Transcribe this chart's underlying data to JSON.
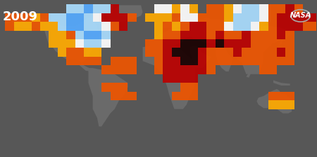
{
  "year_text": "2009",
  "year_color": "#ffffff",
  "year_fontsize": 13,
  "nasa_text": "NASA",
  "background_color": "#575757",
  "land_color": "#6a6a6a",
  "ocean_color": "#575757",
  "figsize": [
    4.5,
    2.24
  ],
  "dpi": 100,
  "colors": {
    "4": "#1a0000",
    "3": "#bb0000",
    "2": "#ee5500",
    "1": "#ffaa00",
    "0": "#ffffff",
    "-1": "#aaddff",
    "-2": "#55aaff",
    "-3": "#2255cc"
  },
  "anomaly_cells": [
    {
      "lon": -175,
      "lat": 65,
      "val": 2
    },
    {
      "lon": -165,
      "lat": 65,
      "val": 2
    },
    {
      "lon": -155,
      "lat": 65,
      "val": 2
    },
    {
      "lon": -145,
      "lat": 65,
      "val": 1
    },
    {
      "lon": -135,
      "lat": 65,
      "val": 2
    },
    {
      "lon": -175,
      "lat": 55,
      "val": 2
    },
    {
      "lon": -165,
      "lat": 55,
      "val": 1
    },
    {
      "lon": -155,
      "lat": 55,
      "val": 1
    },
    {
      "lon": -145,
      "lat": 55,
      "val": 2
    },
    {
      "lon": -135,
      "lat": 55,
      "val": 1
    },
    {
      "lon": -125,
      "lat": 55,
      "val": 1
    },
    {
      "lon": -115,
      "lat": 55,
      "val": -1
    },
    {
      "lon": -105,
      "lat": 55,
      "val": -2
    },
    {
      "lon": -95,
      "lat": 55,
      "val": -2
    },
    {
      "lon": -85,
      "lat": 55,
      "val": -1
    },
    {
      "lon": -75,
      "lat": 55,
      "val": -1
    },
    {
      "lon": -65,
      "lat": 55,
      "val": 0
    },
    {
      "lon": -55,
      "lat": 55,
      "val": 2
    },
    {
      "lon": -45,
      "lat": 55,
      "val": 3
    },
    {
      "lon": -125,
      "lat": 65,
      "val": -1
    },
    {
      "lon": -115,
      "lat": 65,
      "val": -1
    },
    {
      "lon": -105,
      "lat": 65,
      "val": -2
    },
    {
      "lon": -95,
      "lat": 65,
      "val": -2
    },
    {
      "lon": -85,
      "lat": 65,
      "val": -1
    },
    {
      "lon": -75,
      "lat": 65,
      "val": 0
    },
    {
      "lon": -65,
      "lat": 65,
      "val": 3
    },
    {
      "lon": -55,
      "lat": 65,
      "val": 3
    },
    {
      "lon": -45,
      "lat": 65,
      "val": 3
    },
    {
      "lon": -35,
      "lat": 65,
      "val": 2
    },
    {
      "lon": -125,
      "lat": 45,
      "val": 1
    },
    {
      "lon": -115,
      "lat": 45,
      "val": 1
    },
    {
      "lon": -105,
      "lat": 45,
      "val": 2
    },
    {
      "lon": -95,
      "lat": 45,
      "val": -1
    },
    {
      "lon": -85,
      "lat": 45,
      "val": -2
    },
    {
      "lon": -75,
      "lat": 45,
      "val": -2
    },
    {
      "lon": -65,
      "lat": 45,
      "val": -1
    },
    {
      "lon": -125,
      "lat": 35,
      "val": 1
    },
    {
      "lon": -115,
      "lat": 35,
      "val": 1
    },
    {
      "lon": -105,
      "lat": 35,
      "val": 1
    },
    {
      "lon": -95,
      "lat": 35,
      "val": 0
    },
    {
      "lon": -85,
      "lat": 35,
      "val": -1
    },
    {
      "lon": -75,
      "lat": 35,
      "val": -1
    },
    {
      "lon": -65,
      "lat": 35,
      "val": 0
    },
    {
      "lon": -115,
      "lat": 25,
      "val": 1
    },
    {
      "lon": -105,
      "lat": 25,
      "val": 2
    },
    {
      "lon": -95,
      "lat": 25,
      "val": 2
    },
    {
      "lon": -85,
      "lat": 25,
      "val": 1
    },
    {
      "lon": -75,
      "lat": 25,
      "val": 1
    },
    {
      "lon": -105,
      "lat": 15,
      "val": 2
    },
    {
      "lon": -95,
      "lat": 15,
      "val": 2
    },
    {
      "lon": -85,
      "lat": 15,
      "val": 2
    },
    {
      "lon": -75,
      "lat": 15,
      "val": 2
    },
    {
      "lon": -15,
      "lat": 65,
      "val": 1
    },
    {
      "lon": -5,
      "lat": 65,
      "val": 1
    },
    {
      "lon": 5,
      "lat": 65,
      "val": 1
    },
    {
      "lon": 15,
      "lat": 65,
      "val": 2
    },
    {
      "lon": 25,
      "lat": 65,
      "val": 0
    },
    {
      "lon": 35,
      "lat": 65,
      "val": 0
    },
    {
      "lon": 45,
      "lat": 65,
      "val": 2
    },
    {
      "lon": 55,
      "lat": 65,
      "val": 2
    },
    {
      "lon": 65,
      "lat": 65,
      "val": 2
    },
    {
      "lon": 75,
      "lat": 65,
      "val": 1
    },
    {
      "lon": 85,
      "lat": 65,
      "val": -1
    },
    {
      "lon": 95,
      "lat": 65,
      "val": -1
    },
    {
      "lon": 105,
      "lat": 65,
      "val": -1
    },
    {
      "lon": 115,
      "lat": 65,
      "val": 0
    },
    {
      "lon": 125,
      "lat": 65,
      "val": 2
    },
    {
      "lon": 135,
      "lat": 65,
      "val": 3
    },
    {
      "lon": 145,
      "lat": 65,
      "val": 3
    },
    {
      "lon": 155,
      "lat": 65,
      "val": 3
    },
    {
      "lon": 165,
      "lat": 65,
      "val": 3
    },
    {
      "lon": 175,
      "lat": 65,
      "val": 3
    },
    {
      "lon": -5,
      "lat": 55,
      "val": 1
    },
    {
      "lon": 5,
      "lat": 55,
      "val": 2
    },
    {
      "lon": 15,
      "lat": 55,
      "val": 1
    },
    {
      "lon": 25,
      "lat": 55,
      "val": 2
    },
    {
      "lon": 35,
      "lat": 55,
      "val": 3
    },
    {
      "lon": 45,
      "lat": 55,
      "val": 3
    },
    {
      "lon": 55,
      "lat": 55,
      "val": 2
    },
    {
      "lon": 65,
      "lat": 55,
      "val": 2
    },
    {
      "lon": 75,
      "lat": 55,
      "val": 0
    },
    {
      "lon": 85,
      "lat": 55,
      "val": -1
    },
    {
      "lon": 95,
      "lat": 55,
      "val": -1
    },
    {
      "lon": 105,
      "lat": 55,
      "val": 0
    },
    {
      "lon": 115,
      "lat": 55,
      "val": 1
    },
    {
      "lon": 125,
      "lat": 55,
      "val": 2
    },
    {
      "lon": 135,
      "lat": 55,
      "val": 3
    },
    {
      "lon": 145,
      "lat": 55,
      "val": 3
    },
    {
      "lon": 155,
      "lat": 55,
      "val": 3
    },
    {
      "lon": 165,
      "lat": 55,
      "val": 2
    },
    {
      "lon": 175,
      "lat": 55,
      "val": 2
    },
    {
      "lon": -5,
      "lat": 45,
      "val": 1
    },
    {
      "lon": 5,
      "lat": 45,
      "val": 2
    },
    {
      "lon": 15,
      "lat": 45,
      "val": 2
    },
    {
      "lon": 25,
      "lat": 45,
      "val": 3
    },
    {
      "lon": 35,
      "lat": 45,
      "val": 3
    },
    {
      "lon": 45,
      "lat": 45,
      "val": 3
    },
    {
      "lon": 55,
      "lat": 45,
      "val": 2
    },
    {
      "lon": 65,
      "lat": 45,
      "val": 3
    },
    {
      "lon": 75,
      "lat": 45,
      "val": 2
    },
    {
      "lon": 85,
      "lat": 45,
      "val": 2
    },
    {
      "lon": 95,
      "lat": 45,
      "val": 3
    },
    {
      "lon": 105,
      "lat": 45,
      "val": 2
    },
    {
      "lon": 115,
      "lat": 45,
      "val": 2
    },
    {
      "lon": 125,
      "lat": 45,
      "val": 2
    },
    {
      "lon": 135,
      "lat": 45,
      "val": 3
    },
    {
      "lon": 145,
      "lat": 45,
      "val": 2
    },
    {
      "lon": -15,
      "lat": 35,
      "val": 2
    },
    {
      "lon": -5,
      "lat": 35,
      "val": 2
    },
    {
      "lon": 5,
      "lat": 35,
      "val": 3
    },
    {
      "lon": 15,
      "lat": 35,
      "val": 3
    },
    {
      "lon": 25,
      "lat": 35,
      "val": 4
    },
    {
      "lon": 35,
      "lat": 35,
      "val": 4
    },
    {
      "lon": 45,
      "lat": 35,
      "val": 4
    },
    {
      "lon": 55,
      "lat": 35,
      "val": 3
    },
    {
      "lon": 65,
      "lat": 35,
      "val": 4
    },
    {
      "lon": 75,
      "lat": 35,
      "val": 3
    },
    {
      "lon": 85,
      "lat": 35,
      "val": 3
    },
    {
      "lon": 95,
      "lat": 35,
      "val": 3
    },
    {
      "lon": 105,
      "lat": 35,
      "val": 2
    },
    {
      "lon": 115,
      "lat": 35,
      "val": 2
    },
    {
      "lon": 125,
      "lat": 35,
      "val": 2
    },
    {
      "lon": 135,
      "lat": 35,
      "val": 2
    },
    {
      "lon": 145,
      "lat": 35,
      "val": 2
    },
    {
      "lon": -15,
      "lat": 25,
      "val": 2
    },
    {
      "lon": -5,
      "lat": 25,
      "val": 2
    },
    {
      "lon": 5,
      "lat": 25,
      "val": 3
    },
    {
      "lon": 15,
      "lat": 25,
      "val": 4
    },
    {
      "lon": 25,
      "lat": 25,
      "val": 4
    },
    {
      "lon": 35,
      "lat": 25,
      "val": 4
    },
    {
      "lon": 45,
      "lat": 25,
      "val": 3
    },
    {
      "lon": 55,
      "lat": 25,
      "val": 2
    },
    {
      "lon": 65,
      "lat": 25,
      "val": 2
    },
    {
      "lon": 75,
      "lat": 25,
      "val": 2
    },
    {
      "lon": 85,
      "lat": 25,
      "val": 3
    },
    {
      "lon": 95,
      "lat": 25,
      "val": 2
    },
    {
      "lon": 105,
      "lat": 25,
      "val": 2
    },
    {
      "lon": 115,
      "lat": 25,
      "val": 2
    },
    {
      "lon": 125,
      "lat": 25,
      "val": 2
    },
    {
      "lon": 135,
      "lat": 25,
      "val": 3
    },
    {
      "lon": 145,
      "lat": 25,
      "val": 2
    },
    {
      "lon": -5,
      "lat": 15,
      "val": 2
    },
    {
      "lon": 5,
      "lat": 15,
      "val": 3
    },
    {
      "lon": 15,
      "lat": 15,
      "val": 3
    },
    {
      "lon": 25,
      "lat": 15,
      "val": 4
    },
    {
      "lon": 35,
      "lat": 15,
      "val": 4
    },
    {
      "lon": 45,
      "lat": 15,
      "val": 3
    },
    {
      "lon": 55,
      "lat": 15,
      "val": 2
    },
    {
      "lon": 65,
      "lat": 15,
      "val": 2
    },
    {
      "lon": 75,
      "lat": 15,
      "val": 2
    },
    {
      "lon": 85,
      "lat": 15,
      "val": 2
    },
    {
      "lon": 95,
      "lat": 15,
      "val": 2
    },
    {
      "lon": 105,
      "lat": 15,
      "val": 2
    },
    {
      "lon": 115,
      "lat": 15,
      "val": 2
    },
    {
      "lon": 5,
      "lat": 5,
      "val": 3
    },
    {
      "lon": 15,
      "lat": 5,
      "val": 3
    },
    {
      "lon": 25,
      "lat": 5,
      "val": 3
    },
    {
      "lon": 35,
      "lat": 5,
      "val": 3
    },
    {
      "lon": 45,
      "lat": 5,
      "val": 3
    },
    {
      "lon": 55,
      "lat": 5,
      "val": 2
    },
    {
      "lon": 115,
      "lat": 5,
      "val": 2
    },
    {
      "lon": 125,
      "lat": 5,
      "val": 2
    },
    {
      "lon": -5,
      "lat": 5,
      "val": 2
    },
    {
      "lon": 5,
      "lat": -5,
      "val": 3
    },
    {
      "lon": 15,
      "lat": -5,
      "val": 3
    },
    {
      "lon": 25,
      "lat": -5,
      "val": 3
    },
    {
      "lon": 35,
      "lat": -5,
      "val": 3
    },
    {
      "lon": -65,
      "lat": 5,
      "val": 2
    },
    {
      "lon": -55,
      "lat": 5,
      "val": 2
    },
    {
      "lon": -45,
      "lat": 5,
      "val": 2
    },
    {
      "lon": -35,
      "lat": 5,
      "val": 2
    },
    {
      "lon": -55,
      "lat": 15,
      "val": 2
    },
    {
      "lon": -45,
      "lat": 15,
      "val": 2
    },
    {
      "lon": -35,
      "lat": 15,
      "val": 2
    },
    {
      "lon": 125,
      "lat": 15,
      "val": 2
    },
    {
      "lon": 135,
      "lat": 15,
      "val": 2
    },
    {
      "lon": 145,
      "lat": 15,
      "val": 2
    },
    {
      "lon": -5,
      "lat": 75,
      "val": 0
    },
    {
      "lon": 5,
      "lat": 75,
      "val": 0
    },
    {
      "lon": 15,
      "lat": 75,
      "val": 1
    },
    {
      "lon": 25,
      "lat": 75,
      "val": 0
    },
    {
      "lon": 35,
      "lat": 75,
      "val": 1
    },
    {
      "lon": 55,
      "lat": 75,
      "val": 2
    },
    {
      "lon": 65,
      "lat": 75,
      "val": 2
    },
    {
      "lon": 75,
      "lat": 75,
      "val": 1
    },
    {
      "lon": 85,
      "lat": 75,
      "val": 0
    },
    {
      "lon": 95,
      "lat": 75,
      "val": -1
    },
    {
      "lon": 105,
      "lat": 75,
      "val": -1
    },
    {
      "lon": 115,
      "lat": 75,
      "val": 0
    },
    {
      "lon": 125,
      "lat": 75,
      "val": 2
    },
    {
      "lon": 135,
      "lat": 75,
      "val": 2
    },
    {
      "lon": 145,
      "lat": 75,
      "val": 3
    },
    {
      "lon": 155,
      "lat": 75,
      "val": 2
    },
    {
      "lon": -75,
      "lat": 75,
      "val": -1
    },
    {
      "lon": -65,
      "lat": 75,
      "val": -1
    },
    {
      "lon": -55,
      "lat": 75,
      "val": 3
    },
    {
      "lon": -105,
      "lat": 75,
      "val": -1
    },
    {
      "lon": -95,
      "lat": 75,
      "val": -1
    },
    {
      "lon": -85,
      "lat": 75,
      "val": -2
    },
    {
      "lon": 125,
      "lat": -25,
      "val": 2
    },
    {
      "lon": 135,
      "lat": -25,
      "val": 2
    },
    {
      "lon": 145,
      "lat": -25,
      "val": 2
    },
    {
      "lon": 125,
      "lat": -35,
      "val": 1
    },
    {
      "lon": 135,
      "lat": -35,
      "val": 1
    },
    {
      "lon": 145,
      "lat": -35,
      "val": 1
    },
    {
      "lon": -55,
      "lat": -25,
      "val": 2
    },
    {
      "lon": -45,
      "lat": -25,
      "val": 2
    },
    {
      "lon": -35,
      "lat": -25,
      "val": 2
    },
    {
      "lon": -65,
      "lat": -15,
      "val": 2
    },
    {
      "lon": -55,
      "lat": -15,
      "val": 2
    },
    {
      "lon": -45,
      "lat": -15,
      "val": 2
    },
    {
      "lon": 25,
      "lat": -15,
      "val": 2
    },
    {
      "lon": 35,
      "lat": -15,
      "val": 2
    },
    {
      "lon": 15,
      "lat": -25,
      "val": 2
    },
    {
      "lon": 25,
      "lat": -25,
      "val": 2
    },
    {
      "lon": 35,
      "lat": -25,
      "val": 2
    }
  ]
}
